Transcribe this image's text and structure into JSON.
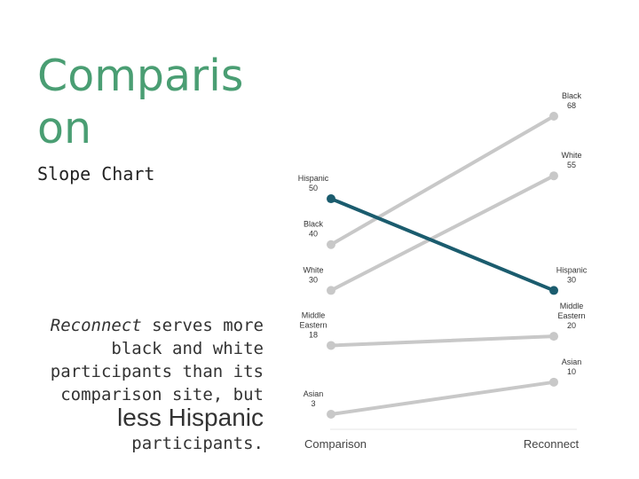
{
  "title": "Comparison",
  "subtitle": "Slope Chart",
  "caption": {
    "italic": "Reconnect",
    "text1": " serves more black and white participants than its comparison site,",
    "text2": " but ",
    "emphasis": "less Hispanic",
    "text3": " participants."
  },
  "colors": {
    "highlight": "#1b5c6e",
    "muted": "#c8c8c8",
    "title": "#4a9e73"
  },
  "chart_data": {
    "type": "slope",
    "x": [
      "Comparison",
      "Reconnect"
    ],
    "ylim": [
      0,
      70
    ],
    "grid": false,
    "series": [
      {
        "name": "Black",
        "values": [
          40,
          68
        ],
        "highlight": false
      },
      {
        "name": "White",
        "values": [
          30,
          55
        ],
        "highlight": false
      },
      {
        "name": "Hispanic",
        "values": [
          50,
          30
        ],
        "highlight": true
      },
      {
        "name": "Middle Eastern",
        "values": [
          18,
          20
        ],
        "highlight": false
      },
      {
        "name": "Asian",
        "values": [
          3,
          10
        ],
        "highlight": false
      }
    ]
  }
}
